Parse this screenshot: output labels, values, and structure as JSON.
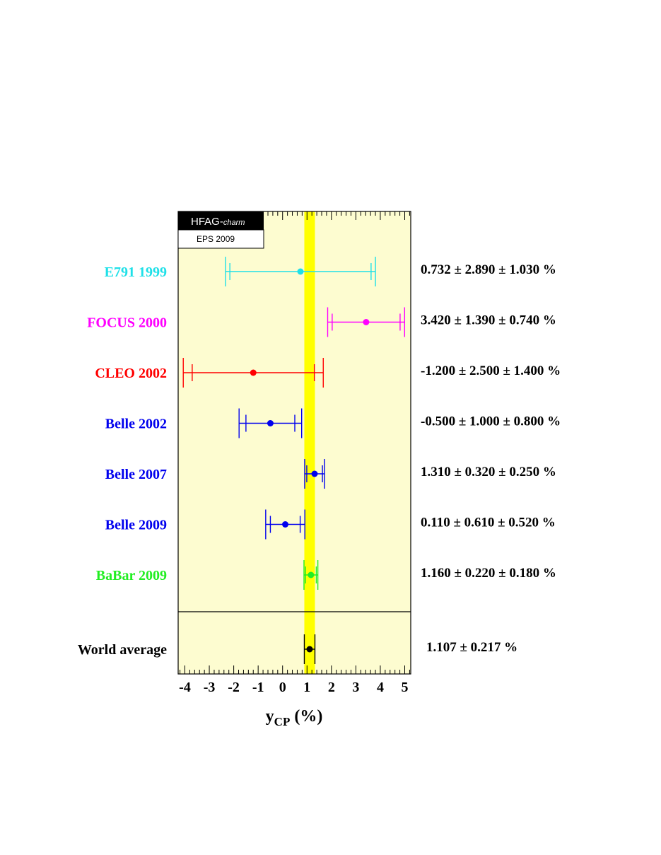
{
  "chart_data": {
    "type": "scatter",
    "subtype": "forest-plot",
    "xlabel_main": "y",
    "xlabel_sub": "CP",
    "xlabel_unit": "(%)",
    "xlim": [
      -4.2,
      5.2
    ],
    "xticks": [
      -4,
      -3,
      -2,
      -1,
      0,
      1,
      2,
      3,
      4,
      5
    ],
    "grid": false,
    "background_color": "#fdfcd0",
    "band": {
      "center": 1.107,
      "error": 0.217,
      "color": "#ffff00"
    },
    "logo": {
      "main": "HFAG-",
      "italic": "charm",
      "subtitle": "EPS 2009"
    },
    "measurements": [
      {
        "label": "E791 1999",
        "value": 0.732,
        "stat": 2.89,
        "syst": 1.03,
        "text": "0.732 ± 2.890 ± 1.030 %",
        "color": "#1ee0e8"
      },
      {
        "label": "FOCUS 2000",
        "value": 3.42,
        "stat": 1.39,
        "syst": 0.74,
        "text": "3.420 ± 1.390 ± 0.740 %",
        "color": "#ff00ff"
      },
      {
        "label": "CLEO 2002",
        "value": -1.2,
        "stat": 2.5,
        "syst": 1.4,
        "text": "-1.200 ± 2.500 ± 1.400 %",
        "color": "#ff0000"
      },
      {
        "label": "Belle 2002",
        "value": -0.5,
        "stat": 1.0,
        "syst": 0.8,
        "text": "-0.500 ± 1.000 ± 0.800 %",
        "color": "#0000ee"
      },
      {
        "label": "Belle 2007",
        "value": 1.31,
        "stat": 0.32,
        "syst": 0.25,
        "text": "1.310 ± 0.320 ± 0.250 %",
        "color": "#0000ee"
      },
      {
        "label": "Belle 2009",
        "value": 0.11,
        "stat": 0.61,
        "syst": 0.52,
        "text": "0.110 ± 0.610 ± 0.520 %",
        "color": "#0000ee"
      },
      {
        "label": "BaBar 2009",
        "value": 1.16,
        "stat": 0.22,
        "syst": 0.18,
        "text": "1.160 ± 0.220 ± 0.180 %",
        "color": "#22ee22"
      }
    ],
    "average": {
      "label": "World average",
      "value": 1.107,
      "error": 0.217,
      "text": "1.107 ± 0.217 %",
      "color": "#000000"
    }
  }
}
